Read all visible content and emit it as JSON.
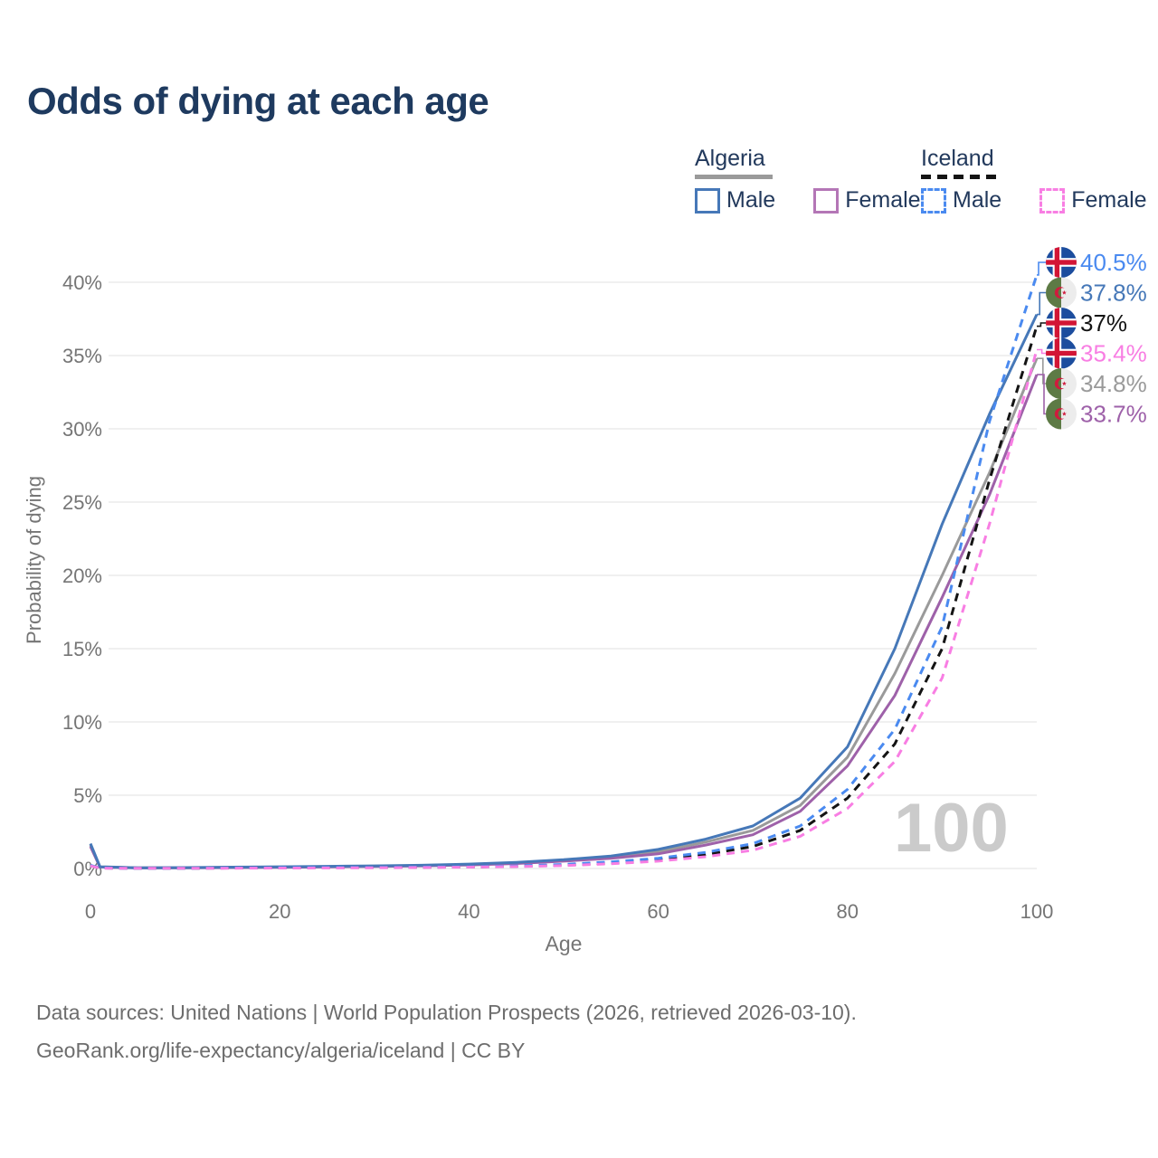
{
  "header": {
    "title": "Odds of dying at each age",
    "title_color": "#1e3a5f"
  },
  "legend": {
    "groups": [
      {
        "label": "Algeria",
        "underline_style": "solid",
        "underline_color": "#9a9a9a",
        "items": [
          {
            "label": "Male",
            "color": "#4678b8",
            "box_style": "solid"
          },
          {
            "label": "Female",
            "color": "#b476b6",
            "box_style": "solid"
          }
        ]
      },
      {
        "label": "Iceland",
        "underline_style": "dashed",
        "underline_color": "#141414",
        "items": [
          {
            "label": "Male",
            "color": "#4a8af0",
            "box_style": "dashed"
          },
          {
            "label": "Female",
            "color": "#f87ee3",
            "box_style": "dashed"
          }
        ]
      }
    ]
  },
  "watermark": {
    "text": "100",
    "color": "#cbcbcb"
  },
  "footer": {
    "line1": "Data sources: United Nations | World Population Prospects (2026, retrieved 2026-03-10).",
    "line2": "GeoRank.org/life-expectancy/algeria/iceland | CC BY"
  },
  "chart_data": {
    "type": "line",
    "title": "Odds of dying at each age",
    "xlabel": "Age",
    "ylabel": "Probability of dying",
    "x_ticks": [
      0,
      20,
      40,
      60,
      80,
      100
    ],
    "y_ticks_pct": [
      0,
      5,
      10,
      15,
      20,
      25,
      30,
      35,
      40
    ],
    "xlim": [
      0,
      100
    ],
    "ylim_pct": [
      0,
      42
    ],
    "grid": true,
    "grid_color": "#ebebeb",
    "tick_color": "#757575",
    "hovered_age": "100",
    "legend_position": "top-right",
    "ages": [
      0,
      1,
      5,
      10,
      15,
      20,
      25,
      30,
      35,
      40,
      45,
      50,
      55,
      60,
      65,
      70,
      75,
      80,
      85,
      90,
      95,
      100
    ],
    "series": [
      {
        "id": "algeria-total",
        "name": "Algeria",
        "country": "Algeria",
        "sex": "Both",
        "style": "solid",
        "color": "#9a9a9a",
        "flag": "algeria",
        "end_label": "34.8%",
        "values_pct": [
          1.6,
          0.11,
          0.05,
          0.05,
          0.08,
          0.1,
          0.13,
          0.16,
          0.2,
          0.27,
          0.38,
          0.55,
          0.78,
          1.15,
          1.8,
          2.6,
          4.3,
          7.6,
          13.3,
          20.0,
          27.0,
          34.8
        ]
      },
      {
        "id": "algeria-female",
        "name": "Algeria Female",
        "country": "Algeria",
        "sex": "Female",
        "style": "solid",
        "color": "#9e61a9",
        "flag": "algeria",
        "end_label": "33.7%",
        "values_pct": [
          1.5,
          0.1,
          0.04,
          0.05,
          0.06,
          0.08,
          0.11,
          0.14,
          0.18,
          0.24,
          0.34,
          0.5,
          0.7,
          1.0,
          1.6,
          2.3,
          3.9,
          7.0,
          11.8,
          18.5,
          25.5,
          33.7
        ]
      },
      {
        "id": "algeria-male",
        "name": "Algeria Male",
        "country": "Algeria",
        "sex": "Male",
        "style": "solid",
        "color": "#4678b8",
        "flag": "algeria",
        "end_label": "37.8%",
        "values_pct": [
          1.7,
          0.12,
          0.05,
          0.06,
          0.09,
          0.12,
          0.15,
          0.18,
          0.22,
          0.3,
          0.42,
          0.6,
          0.85,
          1.3,
          2.0,
          2.9,
          4.8,
          8.3,
          15.0,
          23.5,
          31.0,
          37.8
        ]
      },
      {
        "id": "iceland-total",
        "name": "Iceland",
        "country": "Iceland",
        "sex": "Both",
        "style": "dashed",
        "color": "#141414",
        "flag": "iceland",
        "end_label": "37%",
        "values_pct": [
          0.2,
          0.03,
          0.01,
          0.01,
          0.03,
          0.05,
          0.06,
          0.07,
          0.08,
          0.1,
          0.15,
          0.24,
          0.38,
          0.6,
          0.95,
          1.5,
          2.6,
          4.8,
          8.5,
          15.0,
          26.5,
          37.0
        ]
      },
      {
        "id": "iceland-male",
        "name": "Iceland Male",
        "country": "Iceland",
        "sex": "Male",
        "style": "dashed",
        "color": "#4a8af0",
        "flag": "iceland",
        "end_label": "40.5%",
        "values_pct": [
          0.22,
          0.03,
          0.01,
          0.01,
          0.04,
          0.06,
          0.07,
          0.08,
          0.09,
          0.12,
          0.18,
          0.28,
          0.45,
          0.7,
          1.1,
          1.7,
          2.9,
          5.4,
          9.5,
          16.5,
          30.5,
          40.5
        ]
      },
      {
        "id": "iceland-female",
        "name": "Iceland Female",
        "country": "Iceland",
        "sex": "Female",
        "style": "dashed",
        "color": "#f87ee3",
        "flag": "iceland",
        "end_label": "35.4%",
        "values_pct": [
          0.18,
          0.02,
          0.01,
          0.01,
          0.02,
          0.03,
          0.04,
          0.05,
          0.07,
          0.09,
          0.13,
          0.2,
          0.32,
          0.5,
          0.8,
          1.25,
          2.2,
          4.1,
          7.3,
          13.0,
          23.5,
          35.4
        ]
      }
    ]
  }
}
